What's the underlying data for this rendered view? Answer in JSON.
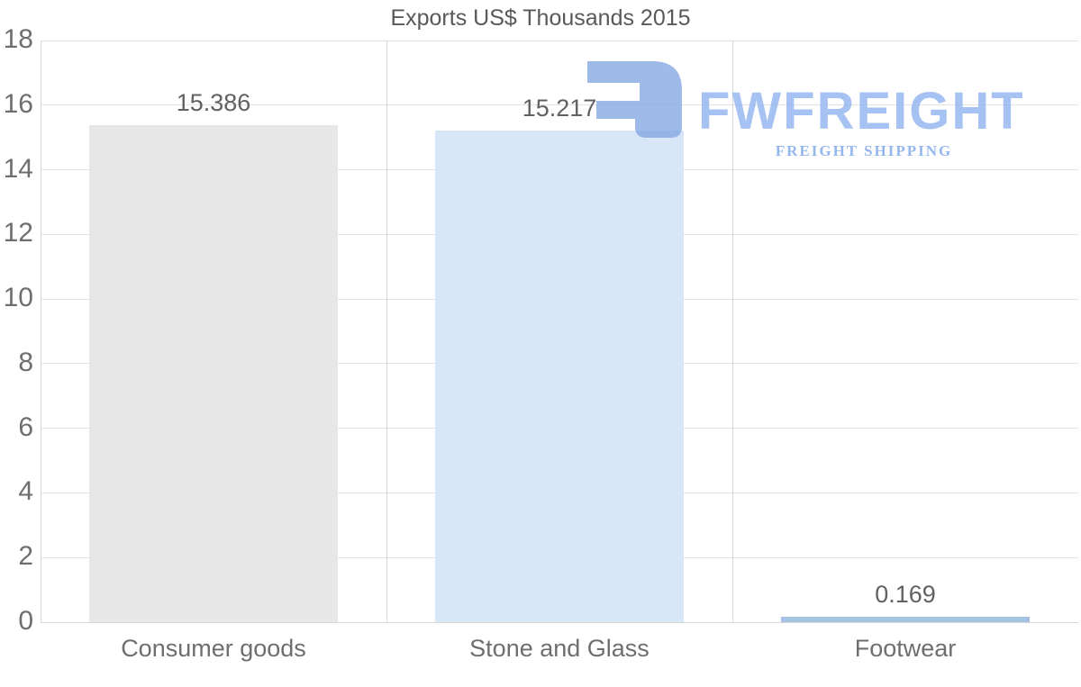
{
  "chart_data": {
    "type": "bar",
    "title": "Exports US$ Thousands 2015",
    "categories": [
      "Consumer goods",
      "Stone and Glass",
      "Footwear"
    ],
    "values": [
      15.386,
      15.217,
      0.169
    ],
    "value_labels": [
      "15.386",
      "15.217",
      "0.169"
    ],
    "bar_colors": [
      "#e7e7e7",
      "#d8e7f8",
      "#a4c3e3"
    ],
    "xlabel": "",
    "ylabel": "",
    "ylim": [
      0,
      18
    ],
    "yticks": [
      0,
      2,
      4,
      6,
      8,
      10,
      12,
      14,
      16,
      18
    ],
    "grid": true,
    "legend_position": "none"
  },
  "watermark": {
    "brand": "FWFREIGHT",
    "tagline": "FREIGHT SHIPPING",
    "icon": "fwfreight-logo-icon",
    "icon_color": "rgba(135,168,228,0.8)",
    "brand_color": "rgba(150,183,240,0.85)",
    "tagline_color": "rgba(130,170,235,0.85)"
  },
  "colors": {
    "background": "#ffffff",
    "title_text": "#58595b",
    "tick_text": "#6e6e6e",
    "value_text": "#616161",
    "category_text": "#6e6e6e",
    "grid_h": "#e3e3e3",
    "grid_v": "#d8d8d8",
    "axis_line": "#d8d8d8"
  }
}
